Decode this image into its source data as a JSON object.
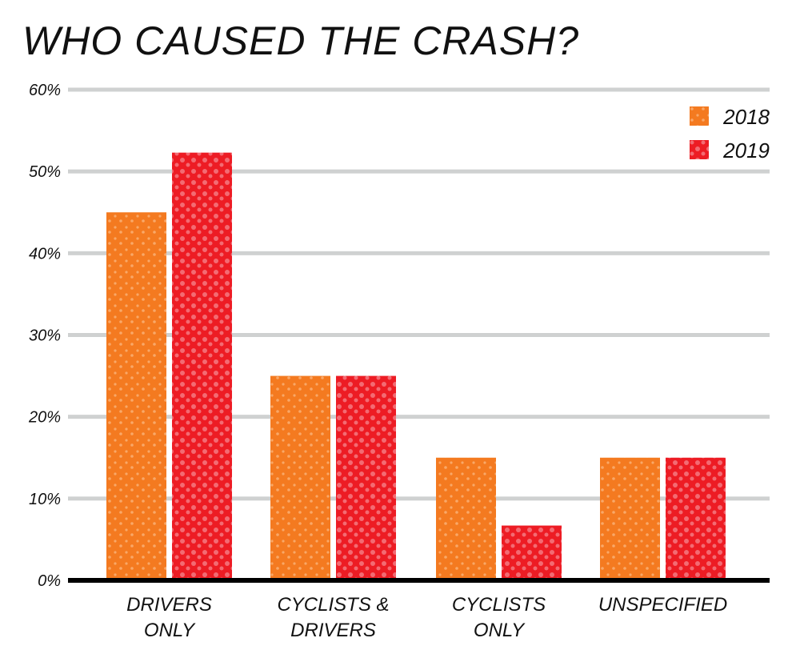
{
  "chart_data": {
    "type": "bar",
    "title": "WHO CAUSED THE CRASH?",
    "xlabel": "",
    "ylabel": "",
    "categories": [
      [
        "DRIVERS",
        "ONLY"
      ],
      [
        "CYCLISTS &",
        "DRIVERS"
      ],
      [
        "CYCLISTS",
        "ONLY"
      ],
      [
        "UNSPECIFIED"
      ]
    ],
    "series": [
      {
        "name": "2018",
        "color": "#f47a20",
        "values": [
          45,
          25,
          15,
          15
        ]
      },
      {
        "name": "2019",
        "color": "#ed1c24",
        "values": [
          52.3,
          25,
          6.7,
          15
        ]
      }
    ],
    "ylim": [
      0,
      60
    ],
    "yticks": [
      0,
      10,
      20,
      30,
      40,
      50,
      60
    ],
    "ytick_labels": [
      "0%",
      "10%",
      "20%",
      "30%",
      "40%",
      "50%",
      "60%"
    ],
    "grid": true,
    "grid_color": "#cfd1d1",
    "legend": "top-right"
  }
}
